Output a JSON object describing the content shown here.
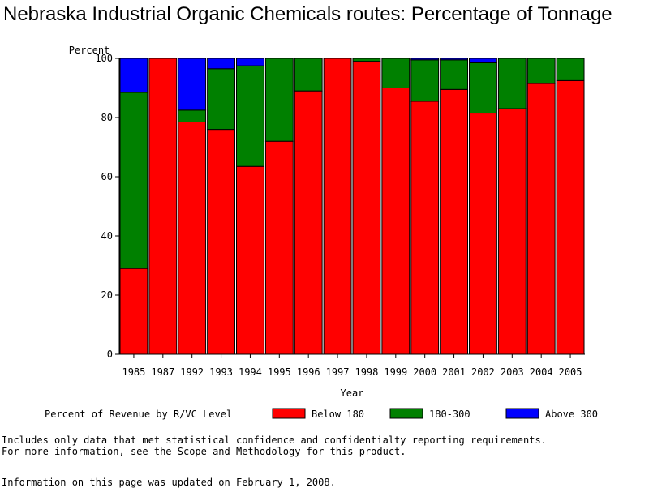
{
  "page": {
    "title": "Nebraska Industrial Organic Chemicals routes: Percentage of Tonnage",
    "footnote_line1": "Includes only data that met statistical confidence and confidentialty reporting requirements.",
    "footnote_line2": "For more information, see the Scope and Methodology for this product.",
    "updated": "Information on this page was updated on February 1, 2008."
  },
  "chart_data": {
    "type": "bar",
    "stacked": true,
    "title": "Nebraska Industrial Organic Chemicals routes: Percentage of Tonnage",
    "xlabel": "Year",
    "ylabel": "Percent",
    "ylim": [
      0,
      100
    ],
    "yticks": [
      0,
      20,
      40,
      60,
      80,
      100
    ],
    "legend_title": "Percent of Revenue by R/VC Level",
    "categories": [
      "1985",
      "1987",
      "1992",
      "1993",
      "1994",
      "1995",
      "1996",
      "1997",
      "1998",
      "1999",
      "2000",
      "2001",
      "2002",
      "2003",
      "2004",
      "2005"
    ],
    "series": [
      {
        "name": "Below 180",
        "color": "#ff0000",
        "values": [
          29,
          100,
          78.5,
          76,
          63.5,
          72,
          89,
          100,
          99,
          90,
          85.5,
          89.5,
          81.5,
          83,
          91.5,
          92.5
        ]
      },
      {
        "name": "180-300",
        "color": "#008000",
        "values": [
          59.5,
          0,
          4,
          20.5,
          34,
          28,
          11,
          0,
          1,
          10,
          14,
          10,
          17,
          17,
          8.5,
          7.5
        ]
      },
      {
        "name": "Above 300",
        "color": "#0000ff",
        "values": [
          11.5,
          0,
          17.5,
          3.5,
          2.5,
          0,
          0,
          0,
          0,
          0,
          0.5,
          0.5,
          1.5,
          0,
          0,
          0
        ]
      }
    ]
  }
}
